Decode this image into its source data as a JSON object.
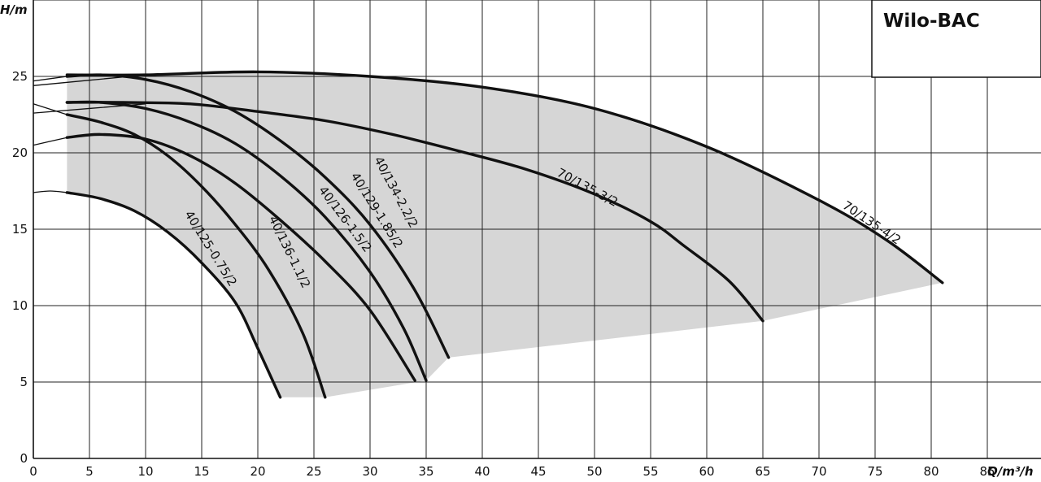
{
  "brand": "Wilo-BAC",
  "chart_data": {
    "type": "line",
    "title": "",
    "xlabel": "Q/m³/h",
    "ylabel": "H/m",
    "xlim": [
      0,
      90
    ],
    "ylim": [
      0,
      30
    ],
    "x_ticks": [
      0,
      5,
      10,
      15,
      20,
      25,
      30,
      35,
      40,
      45,
      50,
      55,
      60,
      65,
      70,
      75,
      80,
      85
    ],
    "y_ticks": [
      0,
      5,
      10,
      15,
      20,
      25
    ],
    "grid": true,
    "legend": "none",
    "operating_range_fill": "#d6d6d6",
    "series": [
      {
        "name": "40/125-0.75/2",
        "label_at": [
          15.5,
          13.6
        ],
        "label_angle": 58,
        "points": [
          [
            3,
            17.4
          ],
          [
            6,
            17.0
          ],
          [
            9,
            16.2
          ],
          [
            12,
            14.8
          ],
          [
            15,
            12.8
          ],
          [
            18,
            10.2
          ],
          [
            20,
            7.2
          ],
          [
            22,
            4.0
          ]
        ]
      },
      {
        "name": "40/136-1.1/2",
        "label_at": [
          22.5,
          13.4
        ],
        "label_angle": 64,
        "points": [
          [
            3,
            22.5
          ],
          [
            6,
            22.0
          ],
          [
            9,
            21.2
          ],
          [
            12,
            19.8
          ],
          [
            15,
            17.8
          ],
          [
            18,
            15.3
          ],
          [
            21,
            12.3
          ],
          [
            24,
            8.2
          ],
          [
            26,
            4.0
          ]
        ]
      },
      {
        "name": "40/126-1.5/2",
        "label_at": [
          27.5,
          15.5
        ],
        "label_angle": 53,
        "points": [
          [
            3,
            21.0
          ],
          [
            6,
            21.2
          ],
          [
            10,
            20.9
          ],
          [
            14,
            19.8
          ],
          [
            18,
            18.0
          ],
          [
            22,
            15.6
          ],
          [
            26,
            12.9
          ],
          [
            30,
            9.7
          ],
          [
            34,
            5.1
          ]
        ]
      },
      {
        "name": "40/129-1.85/2",
        "label_at": [
          30.3,
          16.1
        ],
        "label_angle": 58,
        "points": [
          [
            3,
            23.3
          ],
          [
            6,
            23.3
          ],
          [
            10,
            22.9
          ],
          [
            14,
            22.0
          ],
          [
            18,
            20.6
          ],
          [
            22,
            18.5
          ],
          [
            26,
            15.8
          ],
          [
            30,
            12.2
          ],
          [
            33,
            8.5
          ],
          [
            35,
            5.1
          ]
        ]
      },
      {
        "name": "40/134-2.2/2",
        "label_at": [
          32.0,
          17.3
        ],
        "label_angle": 62,
        "points": [
          [
            3,
            25.0
          ],
          [
            6,
            25.1
          ],
          [
            10,
            24.8
          ],
          [
            14,
            24.0
          ],
          [
            18,
            22.7
          ],
          [
            22,
            20.8
          ],
          [
            26,
            18.4
          ],
          [
            30,
            15.3
          ],
          [
            34,
            11.0
          ],
          [
            37,
            6.6
          ]
        ]
      },
      {
        "name": "70/135-3/2",
        "label_at": [
          49.2,
          17.5
        ],
        "label_angle": 28,
        "points": [
          [
            3,
            23.3
          ],
          [
            8,
            23.3
          ],
          [
            14,
            23.2
          ],
          [
            20,
            22.7
          ],
          [
            26,
            22.1
          ],
          [
            32,
            21.2
          ],
          [
            38,
            20.1
          ],
          [
            44,
            18.9
          ],
          [
            50,
            17.3
          ],
          [
            55,
            15.5
          ],
          [
            58,
            13.9
          ],
          [
            62,
            11.6
          ],
          [
            65,
            9.0
          ]
        ]
      },
      {
        "name": "70/135-4/2",
        "label_at": [
          74.5,
          15.2
        ],
        "label_angle": 34,
        "points": [
          [
            3,
            25.1
          ],
          [
            10,
            25.1
          ],
          [
            20,
            25.3
          ],
          [
            30,
            25.0
          ],
          [
            40,
            24.3
          ],
          [
            50,
            22.9
          ],
          [
            60,
            20.4
          ],
          [
            70,
            16.9
          ],
          [
            76,
            14.3
          ],
          [
            81,
            11.5
          ]
        ]
      }
    ]
  }
}
